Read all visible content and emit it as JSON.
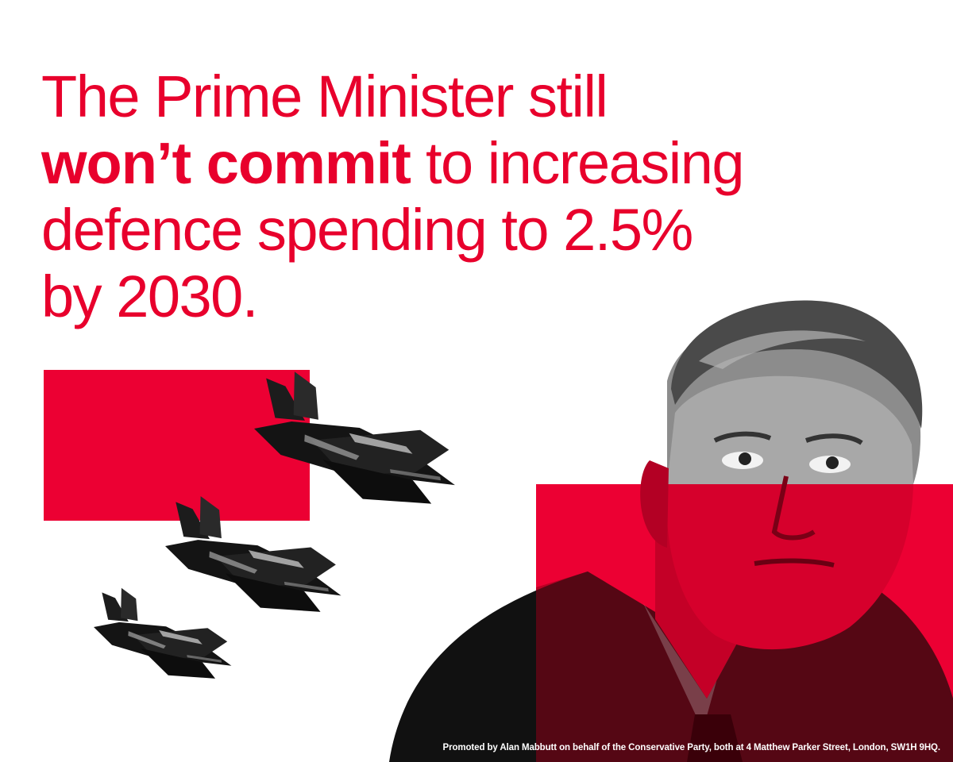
{
  "headline": {
    "line1": "The Prime Minister still",
    "emphasis": "won’t commit",
    "line2_rest": " to increasing",
    "line3": "defence spending to 2.5%",
    "line4": "by 2030."
  },
  "imprint": "Promoted by Alan Mabbutt on behalf of the Conservative Party, both at 4 Matthew Parker Street, London, SW1H 9HQ.",
  "colors": {
    "accent_red": "#e8002c",
    "block_red": "#ec0033",
    "background": "#ffffff",
    "imprint_text": "#ffffff"
  },
  "imagery": {
    "jets": "fighter-jet-silhouettes",
    "portrait": "man-portrait-photo"
  }
}
